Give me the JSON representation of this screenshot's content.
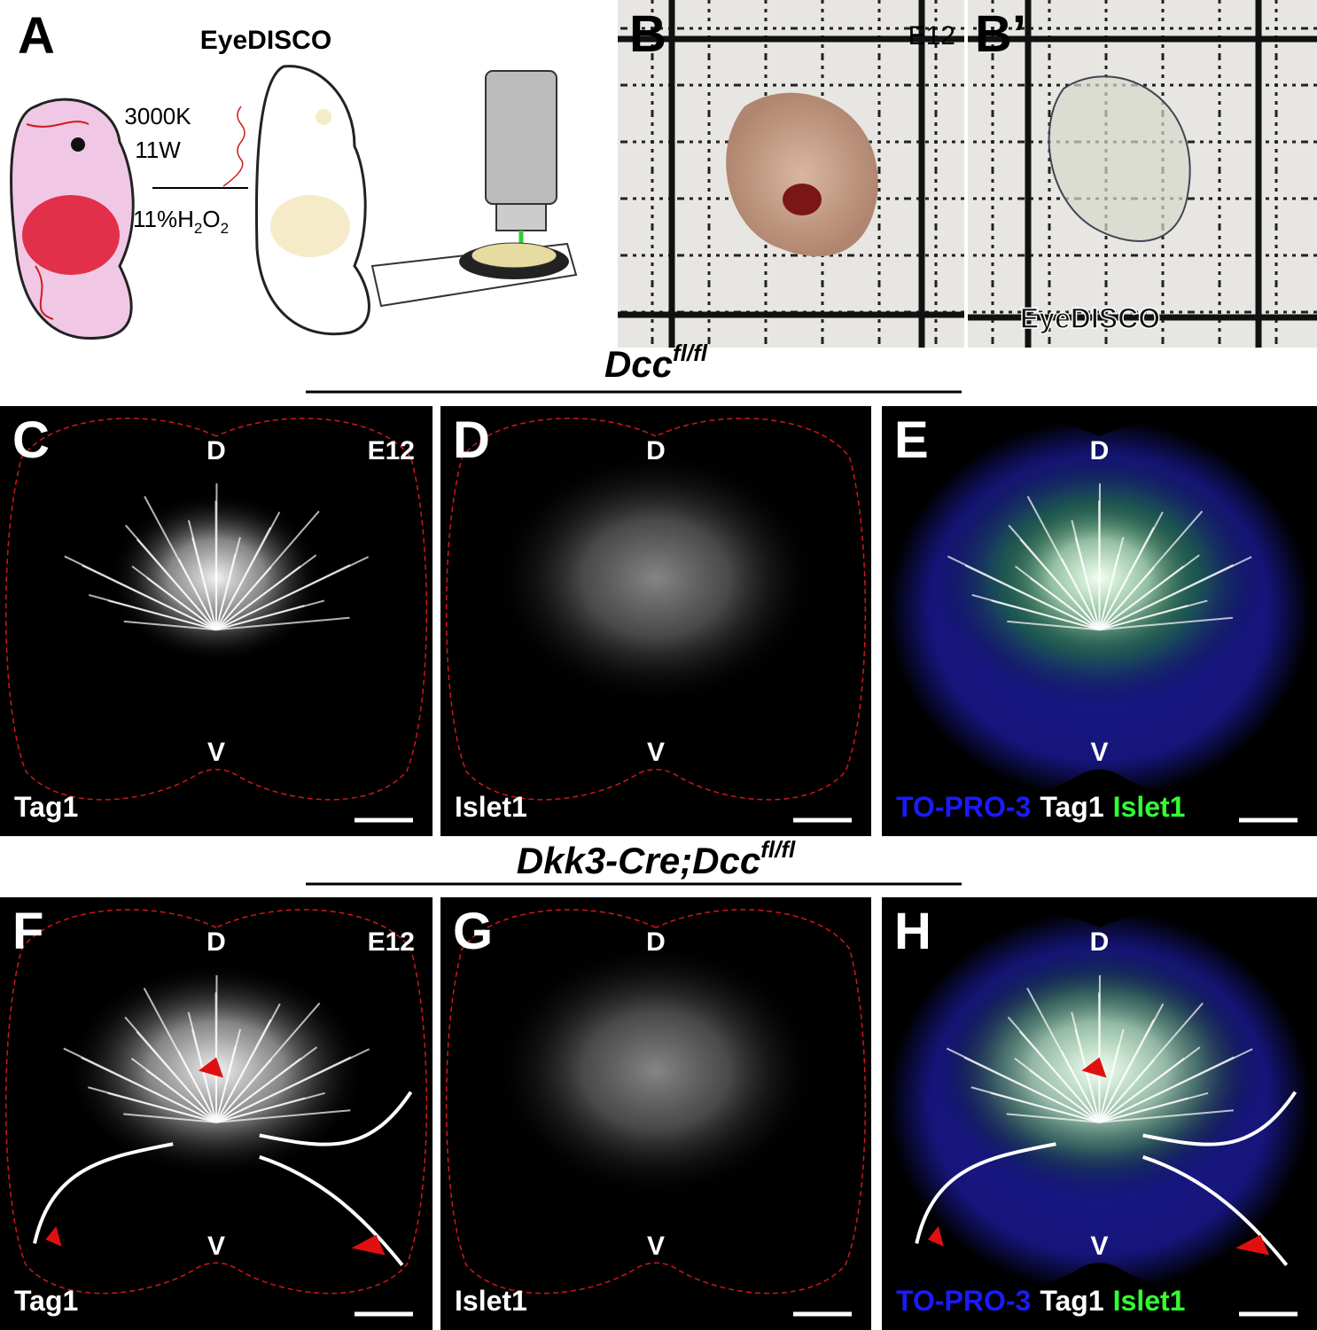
{
  "panel_a": {
    "label": "A",
    "title": "EyeDISCO",
    "light": [
      "3000K",
      "11W"
    ],
    "reagent": {
      "h": "11%H",
      "h_sub": "2",
      "o": "O",
      "o_sub": "2"
    }
  },
  "panel_b": {
    "label": "B",
    "stage": "E12"
  },
  "panel_b_prime": {
    "label": "B’",
    "caption": "EyeDISCO"
  },
  "rows": [
    {
      "genotype": {
        "base": "Dcc",
        "sup": "fl/fl"
      },
      "panels": [
        {
          "label": "C",
          "dorsal": "D",
          "stage": "E12",
          "ventral": "V",
          "stains": [
            {
              "text": "Tag1",
              "color": "#ffffff"
            }
          ]
        },
        {
          "label": "D",
          "dorsal": "D",
          "ventral": "V",
          "stains": [
            {
              "text": "Islet1",
              "color": "#ffffff"
            }
          ]
        },
        {
          "label": "E",
          "dorsal": "D",
          "ventral": "V",
          "stains": [
            {
              "text": "TO-PRO-3",
              "color": "#1a1aff"
            },
            {
              "text": "Tag1",
              "color": "#ffffff"
            },
            {
              "text": "Islet1",
              "color": "#33ff33"
            }
          ]
        }
      ]
    },
    {
      "genotype": {
        "base": "Dkk3-Cre;Dcc",
        "sup": "fl/fl"
      },
      "panels": [
        {
          "label": "F",
          "dorsal": "D",
          "stage": "E12",
          "ventral": "V",
          "stains": [
            {
              "text": "Tag1",
              "color": "#ffffff"
            }
          ]
        },
        {
          "label": "G",
          "dorsal": "D",
          "ventral": "V",
          "stains": [
            {
              "text": "Islet1",
              "color": "#ffffff"
            }
          ]
        },
        {
          "label": "H",
          "dorsal": "D",
          "ventral": "V",
          "stains": [
            {
              "text": "TO-PRO-3",
              "color": "#1a1aff"
            },
            {
              "text": "Tag1",
              "color": "#ffffff"
            },
            {
              "text": "Islet1",
              "color": "#33ff33"
            }
          ]
        }
      ]
    }
  ]
}
